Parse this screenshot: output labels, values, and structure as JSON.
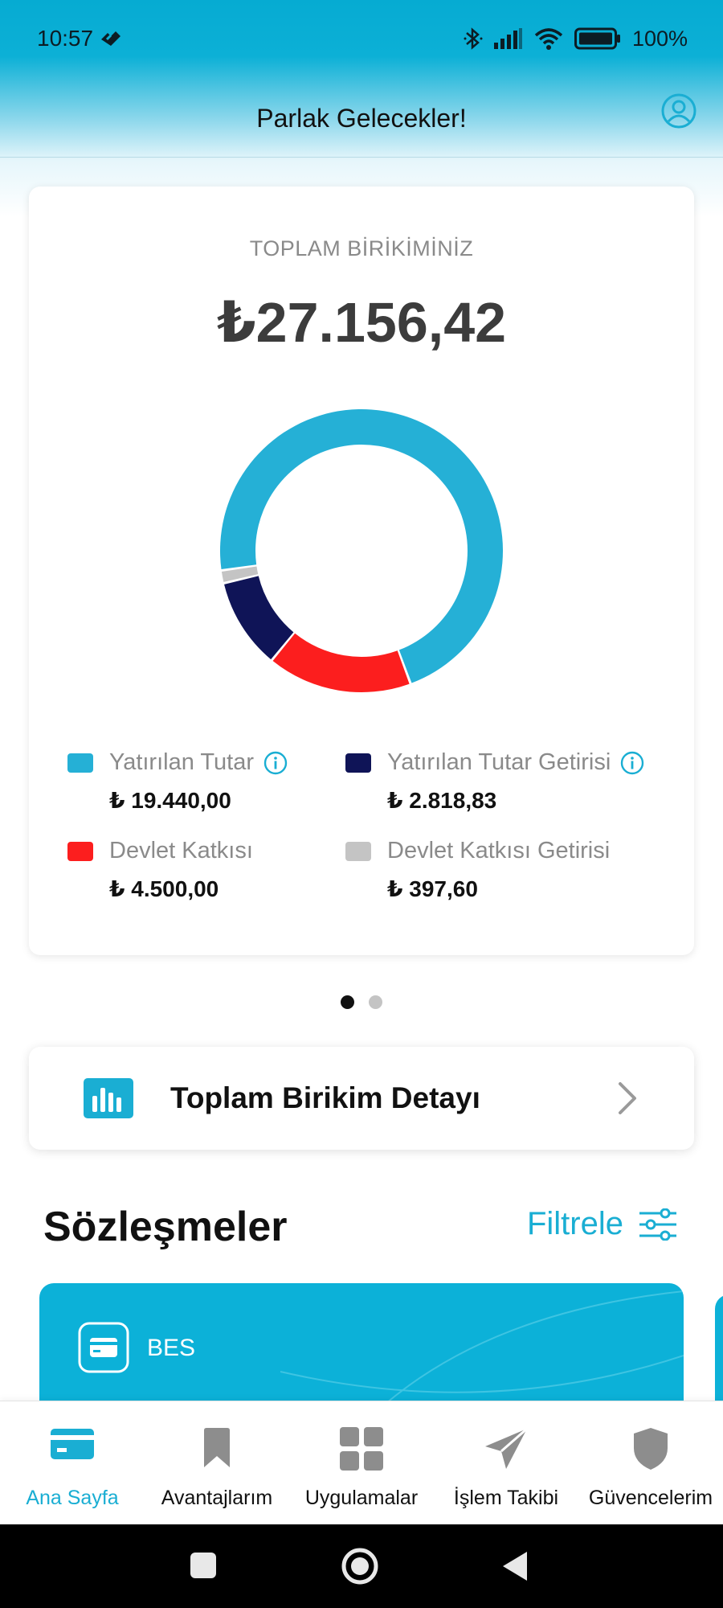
{
  "status_bar": {
    "time": "10:57",
    "battery": "100%",
    "icons": [
      "network-icon",
      "bluetooth-icon",
      "signal-icon",
      "wifi-icon",
      "battery-icon"
    ]
  },
  "header": {
    "title": "Parlak Gelecekler!",
    "profile_icon": "profile-icon"
  },
  "summary": {
    "label": "TOPLAM BİRİKİMİNİZ",
    "total": "₺27.156,42",
    "legend": [
      {
        "name": "Yatırılan Tutar",
        "amount": "₺ 19.440,00",
        "color": "#25b0d6",
        "info": true
      },
      {
        "name": "Yatırılan Tutar Getirisi",
        "amount": "₺ 2.818,83",
        "color": "#0f1457",
        "info": true
      },
      {
        "name": "Devlet Katkısı",
        "amount": "₺ 4.500,00",
        "color": "#fc1e1e",
        "info": false
      },
      {
        "name": "Devlet Katkısı Getirisi",
        "amount": "₺ 397,60",
        "color": "#c4c4c4",
        "info": false
      }
    ]
  },
  "chart_data": {
    "type": "pie",
    "categories": [
      "Yatırılan Tutar",
      "Devlet Katkısı",
      "Yatırılan Tutar Getirisi",
      "Devlet Katkısı Getirisi"
    ],
    "values": [
      19440.0,
      4500.0,
      2818.83,
      397.6
    ],
    "colors": [
      "#25b0d6",
      "#fc1e1e",
      "#0f1457",
      "#c4c4c4"
    ],
    "donut": true
  },
  "pager": {
    "count": 2,
    "active": 0
  },
  "detail": {
    "label": "Toplam Birikim Detayı",
    "icon": "bar-chart-icon"
  },
  "contracts": {
    "title": "Sözleşmeler",
    "filter_label": "Filtrele",
    "filter_icon": "filter-sliders-icon",
    "cards": [
      {
        "label": "BES",
        "icon": "card-icon"
      }
    ]
  },
  "bottom_nav": {
    "active": 0,
    "items": [
      {
        "label": "Ana Sayfa",
        "icon": "card-icon"
      },
      {
        "label": "Avantajlarım",
        "icon": "bookmark-icon"
      },
      {
        "label": "Uygulamalar",
        "icon": "grid-icon"
      },
      {
        "label": "İşlem Takibi",
        "icon": "send-icon"
      },
      {
        "label": "Güvencelerim",
        "icon": "shield-icon"
      }
    ]
  },
  "system_nav": [
    "recents-button",
    "home-button",
    "back-button"
  ]
}
